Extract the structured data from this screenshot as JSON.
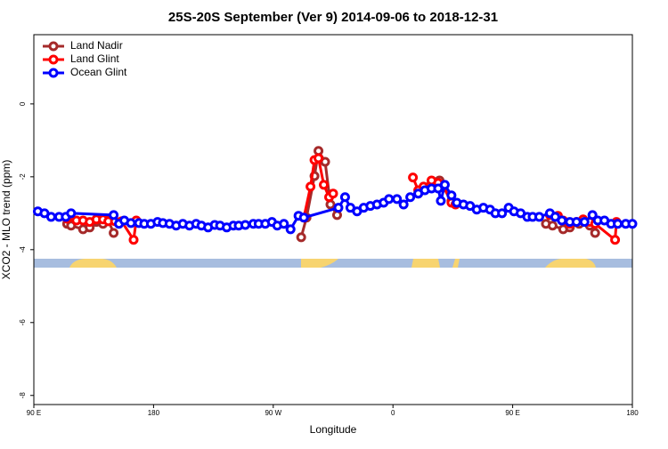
{
  "chart_data": {
    "type": "line",
    "title": "25S-20S September (Ver 9)   2014-09-06 to 2018-12-31",
    "xlabel": "Longitude",
    "ylabel": "XCO2 - MLO trend (ppm)",
    "xlim": [
      90,
      540
    ],
    "xticks": [
      {
        "value": 90,
        "label": "90 E"
      },
      180,
      {
        "value": 270,
        "label": "90 W"
      },
      {
        "value": 360,
        "label": "0"
      },
      {
        "value": 450,
        "label": "90 E"
      },
      {
        "value": 540,
        "label": "180"
      }
    ],
    "ylim": [
      -8.25,
      1.9
    ],
    "yticks": [
      0,
      -2,
      -4,
      -6,
      -8
    ],
    "legend": "top-left",
    "series": [
      {
        "name": "Land Nadir",
        "color": "#a52a2a",
        "x": [
          115,
          118,
          127,
          132,
          137,
          142,
          146,
          150,
          null,
          291,
          295,
          301,
          304,
          309,
          313,
          318,
          null,
          379,
          395,
          404,
          null,
          475,
          480,
          488,
          493,
          500,
          508,
          512
        ],
        "values": [
          -3.29,
          -3.34,
          -3.44,
          -3.39,
          -3.24,
          -3.29,
          -3.2,
          -3.54,
          null,
          -3.66,
          -3.12,
          -1.98,
          -1.29,
          -1.59,
          -2.76,
          -3.05,
          null,
          -2.46,
          -2.1,
          -2.66,
          null,
          -3.29,
          -3.34,
          -3.44,
          -3.39,
          -3.29,
          -3.34,
          -3.54
        ]
      },
      {
        "name": "Land Glint",
        "color": "#ff0000",
        "x": [
          115,
          122,
          127,
          132,
          137,
          142,
          146,
          151,
          156,
          165,
          167,
          null,
          293,
          298,
          301,
          304,
          308,
          312,
          315,
          null,
          375,
          379,
          383,
          389,
          394,
          398,
          404,
          407,
          null,
          478,
          484,
          488,
          493,
          498,
          503,
          508,
          512,
          527,
          528
        ],
        "values": [
          -3.15,
          -3.2,
          -3.2,
          -3.24,
          -3.17,
          -3.17,
          -3.22,
          -3.22,
          -3.22,
          -3.73,
          -3.2,
          null,
          -3.12,
          -2.27,
          -1.54,
          -1.49,
          -2.22,
          -2.56,
          -2.46,
          null,
          -2.02,
          -2.37,
          -2.27,
          -2.1,
          -2.17,
          -2.27,
          -2.71,
          -2.76,
          null,
          -3.05,
          -3.07,
          -3.2,
          -3.29,
          -3.24,
          -3.17,
          -3.24,
          -3.29,
          -3.73,
          -3.24
        ]
      },
      {
        "name": "Ocean Glint",
        "color": "#0000ff",
        "x": [
          93,
          98,
          103,
          109,
          114,
          118,
          150,
          154,
          158,
          163,
          169,
          173,
          178,
          183,
          187,
          192,
          197,
          202,
          207,
          212,
          216,
          221,
          226,
          230,
          235,
          240,
          244,
          249,
          255,
          259,
          264,
          269,
          273,
          278,
          283,
          289,
          293,
          319,
          324,
          328,
          333,
          338,
          343,
          348,
          353,
          357,
          363,
          368,
          373,
          379,
          384,
          389,
          394,
          396,
          399,
          404,
          408,
          413,
          418,
          423,
          428,
          433,
          437,
          442,
          447,
          451,
          456,
          461,
          465,
          470,
          478,
          482,
          487,
          493,
          498,
          504,
          510,
          514,
          519,
          524,
          529,
          535,
          540
        ],
        "values": [
          -2.95,
          -3.0,
          -3.1,
          -3.1,
          -3.1,
          -3.0,
          -3.05,
          -3.29,
          -3.2,
          -3.27,
          -3.27,
          -3.29,
          -3.29,
          -3.24,
          -3.27,
          -3.29,
          -3.34,
          -3.29,
          -3.34,
          -3.29,
          -3.34,
          -3.39,
          -3.32,
          -3.34,
          -3.39,
          -3.34,
          -3.34,
          -3.32,
          -3.29,
          -3.29,
          -3.29,
          -3.24,
          -3.34,
          -3.29,
          -3.44,
          -3.07,
          -3.12,
          -2.85,
          -2.56,
          -2.85,
          -2.95,
          -2.85,
          -2.8,
          -2.76,
          -2.71,
          -2.61,
          -2.61,
          -2.76,
          -2.56,
          -2.46,
          -2.37,
          -2.32,
          -2.32,
          -2.66,
          -2.22,
          -2.51,
          -2.71,
          -2.76,
          -2.8,
          -2.9,
          -2.85,
          -2.9,
          -3.0,
          -3.0,
          -2.85,
          -2.95,
          -3.0,
          -3.1,
          -3.1,
          -3.1,
          -3.0,
          -3.1,
          -3.2,
          -3.24,
          -3.24,
          -3.24,
          -3.05,
          -3.2,
          -3.2,
          -3.29,
          -3.29,
          -3.29,
          -3.29
        ]
      }
    ]
  }
}
